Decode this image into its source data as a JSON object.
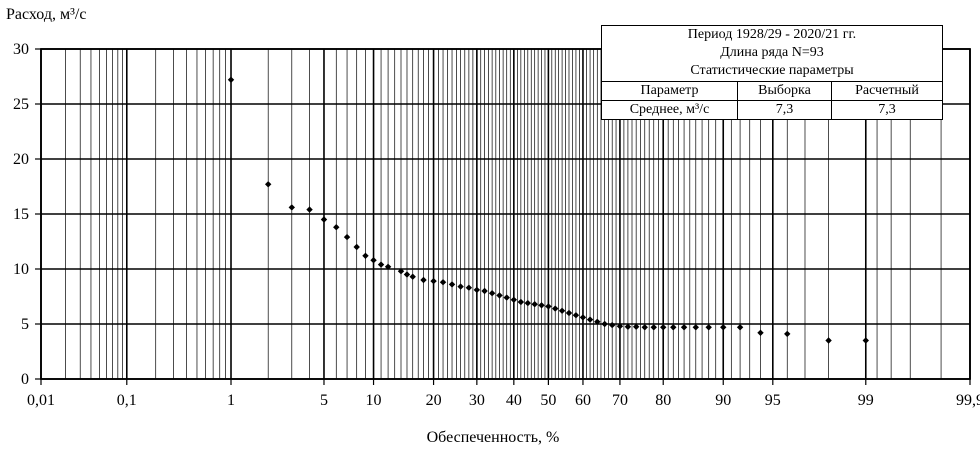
{
  "chart_data": {
    "type": "scatter",
    "title": "",
    "ylabel": "Расход, м³/с",
    "xlabel": "Обеспеченность, %",
    "x_scale": "probability",
    "x_ticks": [
      0.01,
      0.1,
      1,
      5,
      10,
      20,
      30,
      40,
      50,
      60,
      70,
      80,
      90,
      95,
      99,
      99.9
    ],
    "x_tick_labels": [
      "0,01",
      "0,1",
      "1",
      "5",
      "10",
      "20",
      "30",
      "40",
      "50",
      "60",
      "70",
      "80",
      "90",
      "95",
      "99",
      "99,9"
    ],
    "y_ticks": [
      0,
      5,
      10,
      15,
      20,
      25,
      30
    ],
    "ylim": [
      0,
      30
    ],
    "xlim": [
      0.01,
      99.9
    ],
    "grid": true,
    "marker_color": "#000000",
    "series": [
      {
        "x": [
          1,
          2,
          3,
          4,
          5,
          6,
          7,
          8,
          9,
          10,
          11,
          12,
          14,
          15,
          16,
          18,
          20,
          22,
          24,
          26,
          28,
          30,
          32,
          34,
          36,
          38,
          40,
          42,
          44,
          46,
          48,
          50,
          52,
          54,
          56,
          58,
          60,
          62,
          64,
          66,
          68,
          70,
          72,
          74,
          76,
          78,
          80,
          82,
          84,
          86,
          88,
          90,
          92,
          94,
          96,
          98,
          99
        ],
        "y": [
          27.2,
          17.7,
          15.6,
          15.4,
          14.5,
          13.8,
          12.9,
          12.0,
          11.2,
          10.8,
          10.4,
          10.2,
          9.8,
          9.5,
          9.3,
          9.0,
          8.9,
          8.8,
          8.6,
          8.4,
          8.3,
          8.1,
          8.0,
          7.8,
          7.6,
          7.4,
          7.2,
          7.0,
          6.9,
          6.8,
          6.7,
          6.6,
          6.4,
          6.2,
          6.0,
          5.8,
          5.6,
          5.4,
          5.2,
          5.0,
          4.9,
          4.8,
          4.75,
          4.75,
          4.7,
          4.7,
          4.7,
          4.7,
          4.7,
          4.7,
          4.7,
          4.7,
          4.7,
          4.2,
          4.1,
          3.5,
          3.5
        ]
      }
    ]
  },
  "legend": {
    "line1": "Период 1928/29 - 2020/21 гг.",
    "line2": "Длина ряда N=93",
    "line3": "Статистические параметры",
    "headers": [
      "Параметр",
      "Выборка",
      "Расчетный"
    ],
    "row": [
      "Среднее, м³/с",
      "7,3",
      "7,3"
    ]
  }
}
